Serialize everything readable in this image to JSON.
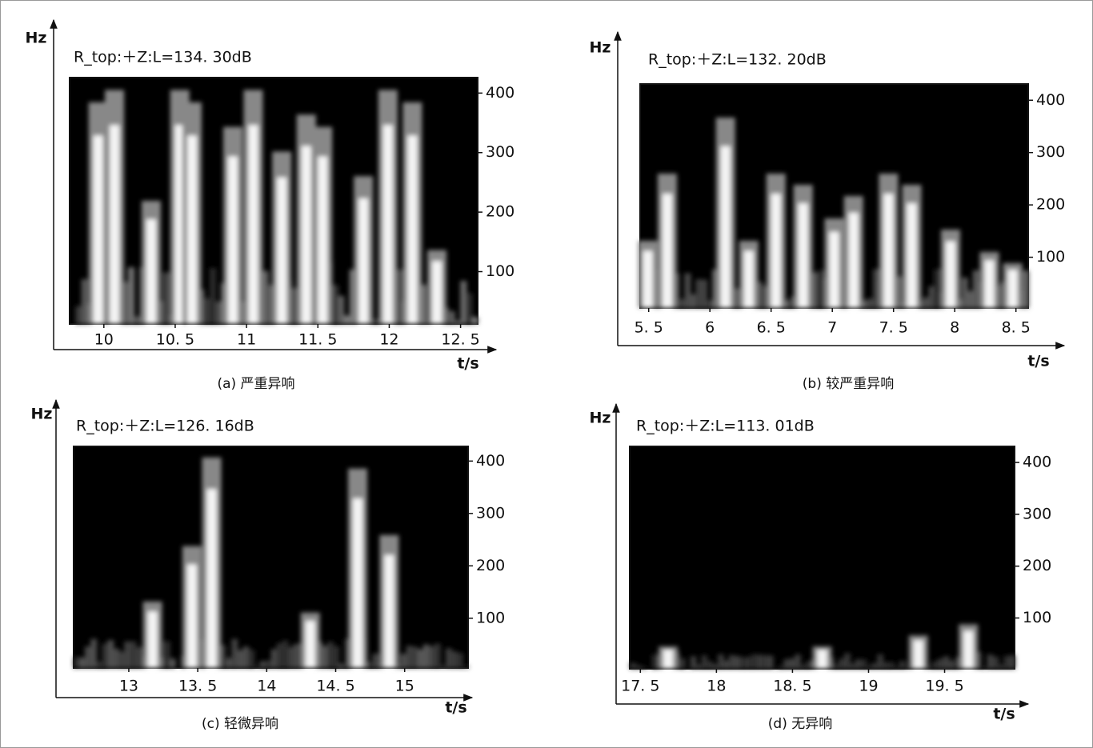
{
  "chart_data": [
    {
      "type": "spectrogram",
      "title": "R_top:＋Z:L=134. 30dB",
      "caption": "(a) 严重异响",
      "x_label": "t/s",
      "y_label": "Hz",
      "xlim": [
        9.76,
        12.62
      ],
      "xticks": [
        10,
        {
          "value": 10.5,
          "label": "10. 5"
        },
        11,
        {
          "value": 11.5,
          "label": "11. 5"
        },
        12,
        {
          "value": 12.5,
          "label": "12. 5"
        }
      ],
      "ylim": [
        12,
        426
      ],
      "yticks": [
        100,
        200,
        300,
        400
      ]
    },
    {
      "type": "spectrogram",
      "title": "R_top:＋Z:L=132. 20dB",
      "caption": "(b) 较严重异响",
      "x_label": "t/s",
      "y_label": "Hz",
      "xlim": [
        5.43,
        8.6
      ],
      "xticks": [
        {
          "value": 5.5,
          "label": "5. 5"
        },
        6,
        {
          "value": 6.5,
          "label": "6. 5"
        },
        7,
        {
          "value": 7.5,
          "label": "7. 5"
        },
        8,
        {
          "value": 8.5,
          "label": "8. 5"
        }
      ],
      "ylim": [
        3,
        431
      ],
      "yticks": [
        100,
        200,
        300,
        400
      ]
    },
    {
      "type": "spectrogram",
      "title": "R_top:＋Z:L=126. 16dB",
      "caption": "(c) 轻微异响",
      "x_label": "t/s",
      "y_label": "Hz",
      "xlim": [
        12.6,
        15.46
      ],
      "xticks": [
        13,
        {
          "value": 13.5,
          "label": "13. 5"
        },
        14,
        {
          "value": 14.5,
          "label": "14. 5"
        },
        15
      ],
      "ylim": [
        5,
        428
      ],
      "yticks": [
        100,
        200,
        300,
        400
      ]
    },
    {
      "type": "spectrogram",
      "title": "R_top:＋Z:L=113. 01dB",
      "caption": "(d) 无异响",
      "x_label": "t/s",
      "y_label": "Hz",
      "xlim": [
        17.43,
        19.96
      ],
      "xticks": [
        {
          "value": 17.5,
          "label": "17. 5"
        },
        18,
        {
          "value": 18.5,
          "label": "18. 5"
        },
        19,
        {
          "value": 19.5,
          "label": "19. 5"
        }
      ],
      "ylim": [
        2,
        431
      ],
      "yticks": [
        100,
        200,
        300,
        400
      ]
    }
  ]
}
